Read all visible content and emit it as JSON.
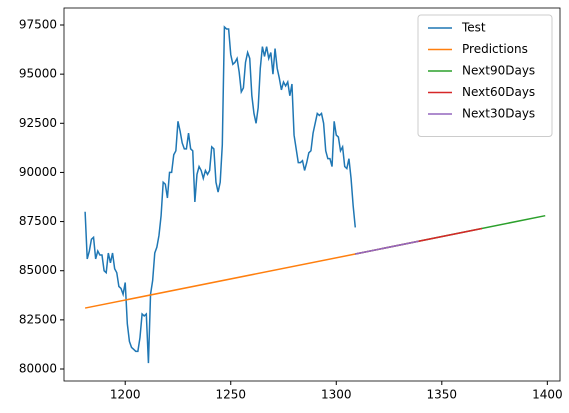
{
  "chart_data": {
    "type": "line",
    "xlim": [
      1171,
      1406
    ],
    "xticks": [
      1200,
      1250,
      1300,
      1350,
      1400
    ],
    "ylim": [
      79390,
      98365
    ],
    "yticks": [
      80000,
      82500,
      85000,
      87500,
      90000,
      92500,
      95000,
      97500
    ],
    "grid": false,
    "legend": "upper right",
    "series": [
      {
        "name": "Test",
        "color": "#1f77b4",
        "x": [
          1181,
          1182,
          1183,
          1184,
          1185,
          1186,
          1187,
          1188,
          1189,
          1190,
          1191,
          1192,
          1193,
          1194,
          1195,
          1196,
          1197,
          1198,
          1199,
          1200,
          1201,
          1202,
          1203,
          1204,
          1205,
          1206,
          1207,
          1208,
          1209,
          1210,
          1211,
          1212,
          1213,
          1214,
          1215,
          1216,
          1217,
          1218,
          1219,
          1220,
          1221,
          1222,
          1223,
          1224,
          1225,
          1226,
          1227,
          1228,
          1229,
          1230,
          1231,
          1232,
          1233,
          1234,
          1235,
          1236,
          1237,
          1238,
          1239,
          1240,
          1241,
          1242,
          1243,
          1244,
          1245,
          1246,
          1247,
          1248,
          1249,
          1250,
          1251,
          1252,
          1253,
          1254,
          1255,
          1256,
          1257,
          1258,
          1259,
          1260,
          1261,
          1262,
          1263,
          1264,
          1265,
          1266,
          1267,
          1268,
          1269,
          1270,
          1271,
          1272,
          1273,
          1274,
          1275,
          1276,
          1277,
          1278,
          1279,
          1280,
          1281,
          1282,
          1283,
          1284,
          1285,
          1286,
          1287,
          1288,
          1289,
          1290,
          1291,
          1292,
          1293,
          1294,
          1295,
          1296,
          1297,
          1298,
          1299,
          1300,
          1301,
          1302,
          1303,
          1304,
          1305,
          1306,
          1307,
          1308,
          1309
        ],
        "values": [
          88000,
          85600,
          86000,
          86600,
          86700,
          85600,
          86000,
          85800,
          85800,
          85000,
          84900,
          85900,
          85400,
          85900,
          85100,
          84900,
          84200,
          84100,
          83800,
          84400,
          82300,
          81400,
          81100,
          81000,
          80900,
          80900,
          81600,
          82800,
          82700,
          82800,
          80300,
          83800,
          84500,
          85900,
          86200,
          86800,
          87800,
          89500,
          89400,
          88700,
          90000,
          90000,
          90900,
          91100,
          92600,
          92100,
          91500,
          91200,
          91200,
          92000,
          91200,
          91100,
          88500,
          89900,
          90300,
          90100,
          89700,
          90100,
          89900,
          90100,
          91300,
          91200,
          89500,
          89000,
          89500,
          91400,
          97400,
          97300,
          97300,
          96000,
          95500,
          95600,
          95800,
          95100,
          94100,
          94300,
          95600,
          96100,
          95800,
          93900,
          93000,
          92500,
          93300,
          95300,
          96400,
          95900,
          96400,
          95800,
          96100,
          95000,
          96300,
          95300,
          94800,
          94200,
          94600,
          94400,
          94600,
          93900,
          94500,
          91900,
          91200,
          90500,
          90500,
          90600,
          90100,
          90500,
          91000,
          91100,
          92000,
          92500,
          93000,
          92900,
          93000,
          92500,
          91100,
          90700,
          90700,
          90300,
          92600,
          91900,
          91800,
          91100,
          91300,
          90300,
          90200,
          90700,
          89700,
          88300,
          87200
        ]
      },
      {
        "name": "Predictions",
        "color": "#ff7f0e",
        "x": [
          1181,
          1309
        ],
        "values": [
          83100,
          85850
        ]
      },
      {
        "name": "Next90Days",
        "color": "#2ca02c",
        "x": [
          1309,
          1399
        ],
        "values": [
          85850,
          87800
        ]
      },
      {
        "name": "Next60Days",
        "color": "#d62728",
        "x": [
          1309,
          1369
        ],
        "values": [
          85850,
          87150
        ]
      },
      {
        "name": "Next30Days",
        "color": "#9467bd",
        "x": [
          1309,
          1339
        ],
        "values": [
          85850,
          86500
        ]
      }
    ]
  }
}
